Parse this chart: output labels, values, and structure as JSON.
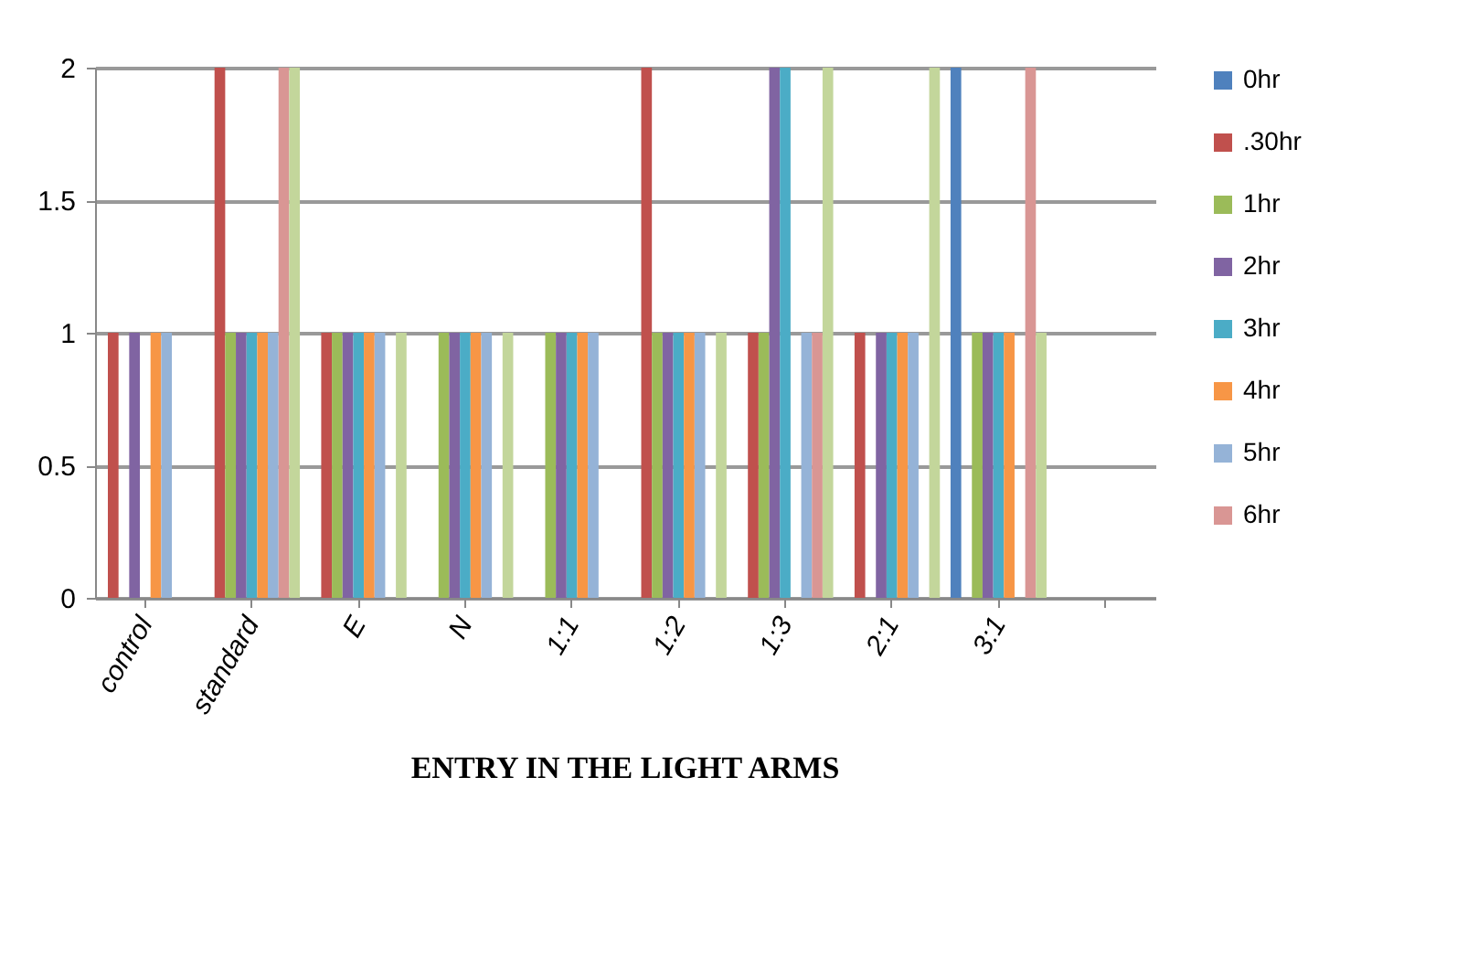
{
  "chart_data": {
    "type": "bar",
    "title": "ENTRY IN THE LIGHT ARMS",
    "categories": [
      "control",
      "standard",
      "E",
      "N",
      "1:1",
      "1:2",
      "1:3",
      "2:1",
      "3:1",
      null
    ],
    "series": [
      {
        "name": "0hr",
        "color": "#4f81bd",
        "values": [
          0,
          0,
          0,
          0,
          0,
          0,
          0,
          0,
          2,
          null
        ]
      },
      {
        "name": ".30hr",
        "color": "#c0504d",
        "values": [
          1,
          2,
          1,
          0,
          0,
          2,
          1,
          1,
          0,
          null
        ]
      },
      {
        "name": "1hr",
        "color": "#9bbb59",
        "values": [
          0,
          1,
          1,
          1,
          1,
          1,
          1,
          0,
          1,
          null
        ]
      },
      {
        "name": "2hr",
        "color": "#8064a2",
        "values": [
          1,
          1,
          1,
          1,
          1,
          1,
          2,
          1,
          1,
          null
        ]
      },
      {
        "name": "3hr",
        "color": "#4bacc6",
        "values": [
          0,
          1,
          1,
          1,
          1,
          1,
          2,
          1,
          1,
          null
        ]
      },
      {
        "name": "4hr",
        "color": "#f79646",
        "values": [
          1,
          1,
          1,
          1,
          1,
          1,
          0,
          1,
          1,
          null
        ]
      },
      {
        "name": "5hr",
        "color": "#95b3d7",
        "values": [
          1,
          1,
          1,
          1,
          1,
          1,
          1,
          1,
          0,
          null
        ]
      },
      {
        "name": "6hr",
        "color": "#d99694",
        "values": [
          0,
          2,
          0,
          0,
          0,
          0,
          1,
          0,
          2,
          null
        ]
      },
      {
        "color": "#c3d69b",
        "values": [
          0,
          2,
          1,
          1,
          0,
          1,
          2,
          2,
          1,
          null
        ]
      }
    ],
    "ylim": [
      0,
      2
    ],
    "yticks": [
      0,
      0.5,
      1,
      1.5,
      2
    ],
    "grid": "y",
    "legend": "right"
  }
}
